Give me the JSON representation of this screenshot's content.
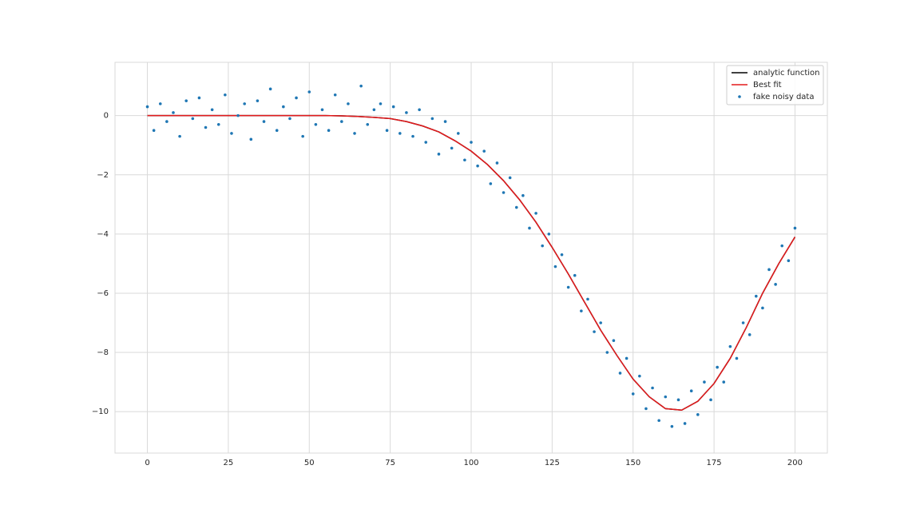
{
  "chart_data": {
    "type": "line",
    "series": [
      {
        "name": "analytic function",
        "type": "line",
        "color": "#000000",
        "x": [
          0,
          5,
          10,
          15,
          20,
          25,
          30,
          35,
          40,
          45,
          50,
          55,
          60,
          65,
          70,
          75,
          80,
          85,
          90,
          95,
          100,
          105,
          110,
          115,
          120,
          125,
          130,
          135,
          140,
          145,
          150,
          155,
          160,
          165,
          170,
          175,
          180,
          185,
          190,
          195,
          200
        ],
        "values": [
          0,
          0,
          0,
          0,
          0,
          0,
          0,
          0,
          0,
          0,
          0,
          0,
          -0.01,
          -0.03,
          -0.06,
          -0.1,
          -0.2,
          -0.35,
          -0.55,
          -0.85,
          -1.2,
          -1.65,
          -2.2,
          -2.85,
          -3.6,
          -4.45,
          -5.35,
          -6.3,
          -7.25,
          -8.1,
          -8.9,
          -9.5,
          -9.9,
          -9.95,
          -9.65,
          -9.05,
          -8.2,
          -7.15,
          -6.0,
          -5.0,
          -4.1
        ]
      },
      {
        "name": "Best fit",
        "type": "line",
        "color": "#e41a1c",
        "x": [
          0,
          5,
          10,
          15,
          20,
          25,
          30,
          35,
          40,
          45,
          50,
          55,
          60,
          65,
          70,
          75,
          80,
          85,
          90,
          95,
          100,
          105,
          110,
          115,
          120,
          125,
          130,
          135,
          140,
          145,
          150,
          155,
          160,
          165,
          170,
          175,
          180,
          185,
          190,
          195,
          200
        ],
        "values": [
          0,
          0,
          0,
          0,
          0,
          0,
          0,
          0,
          0,
          0,
          0,
          0,
          -0.01,
          -0.03,
          -0.06,
          -0.1,
          -0.2,
          -0.35,
          -0.55,
          -0.85,
          -1.2,
          -1.65,
          -2.2,
          -2.85,
          -3.6,
          -4.45,
          -5.35,
          -6.3,
          -7.25,
          -8.1,
          -8.9,
          -9.5,
          -9.9,
          -9.95,
          -9.65,
          -9.05,
          -8.2,
          -7.15,
          -6.0,
          -5.0,
          -4.1
        ]
      },
      {
        "name": "fake noisy data",
        "type": "scatter",
        "color": "#1f77b4",
        "x": [
          0,
          2,
          4,
          6,
          8,
          10,
          12,
          14,
          16,
          18,
          20,
          22,
          24,
          26,
          28,
          30,
          32,
          34,
          36,
          38,
          40,
          42,
          44,
          46,
          48,
          50,
          52,
          54,
          56,
          58,
          60,
          62,
          64,
          66,
          68,
          70,
          72,
          74,
          76,
          78,
          80,
          82,
          84,
          86,
          88,
          90,
          92,
          94,
          96,
          98,
          100,
          102,
          104,
          106,
          108,
          110,
          112,
          114,
          116,
          118,
          120,
          122,
          124,
          126,
          128,
          130,
          132,
          134,
          136,
          138,
          140,
          142,
          144,
          146,
          148,
          150,
          152,
          154,
          156,
          158,
          160,
          162,
          164,
          166,
          168,
          170,
          172,
          174,
          176,
          178,
          180,
          182,
          184,
          186,
          188,
          190,
          192,
          194,
          196,
          198,
          200
        ],
        "values": [
          0.3,
          -0.5,
          0.4,
          -0.2,
          0.1,
          -0.7,
          0.5,
          -0.1,
          0.6,
          -0.4,
          0.2,
          -0.3,
          0.7,
          -0.6,
          0.0,
          0.4,
          -0.8,
          0.5,
          -0.2,
          0.9,
          -0.5,
          0.3,
          -0.1,
          0.6,
          -0.7,
          0.8,
          -0.3,
          0.2,
          -0.5,
          0.7,
          -0.2,
          0.4,
          -0.6,
          1.0,
          -0.3,
          0.2,
          0.4,
          -0.5,
          0.3,
          -0.6,
          0.1,
          -0.7,
          0.2,
          -0.9,
          -0.1,
          -1.3,
          -0.2,
          -1.1,
          -0.6,
          -1.5,
          -0.9,
          -1.7,
          -1.2,
          -2.3,
          -1.6,
          -2.6,
          -2.1,
          -3.1,
          -2.7,
          -3.8,
          -3.3,
          -4.4,
          -4.0,
          -5.1,
          -4.7,
          -5.8,
          -5.4,
          -6.6,
          -6.2,
          -7.3,
          -7.0,
          -8.0,
          -7.6,
          -8.7,
          -8.2,
          -9.4,
          -8.8,
          -9.9,
          -9.2,
          -10.3,
          -9.5,
          -10.5,
          -9.6,
          -10.4,
          -9.3,
          -10.1,
          -9.0,
          -9.6,
          -8.5,
          -9.0,
          -7.8,
          -8.2,
          -7.0,
          -7.4,
          -6.1,
          -6.5,
          -5.2,
          -5.7,
          -4.4,
          -4.9,
          -3.8
        ]
      }
    ],
    "xlim": [
      -10,
      210
    ],
    "xticks": [
      0,
      25,
      50,
      75,
      100,
      125,
      150,
      175,
      200
    ],
    "ylim": [
      -11.4,
      1.8
    ],
    "yticks": [
      0,
      {
        "value": -2,
        "label": "−2"
      },
      {
        "value": -4,
        "label": "−4"
      },
      {
        "value": -6,
        "label": "−6"
      },
      {
        "value": -8,
        "label": "−8"
      },
      {
        "value": -10,
        "label": "−10"
      }
    ],
    "grid": true,
    "legend": "upper right"
  }
}
